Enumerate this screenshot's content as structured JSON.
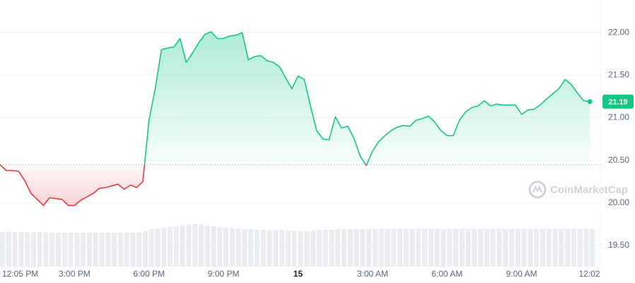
{
  "chart_data": {
    "type": "line",
    "x": [
      12,
      12.25,
      12.5,
      12.75,
      13,
      13.25,
      13.5,
      13.75,
      14,
      14.25,
      14.5,
      14.75,
      15,
      15.25,
      15.5,
      15.75,
      16,
      16.25,
      16.5,
      16.75,
      17,
      17.25,
      17.5,
      17.75,
      18,
      18.25,
      18.5,
      18.75,
      19,
      19.25,
      19.5,
      19.75,
      20,
      20.25,
      20.5,
      20.75,
      21,
      21.25,
      21.5,
      21.75,
      22,
      22.25,
      22.5,
      22.75,
      23,
      23.25,
      23.5,
      23.75,
      24,
      24.25,
      24.5,
      24.75,
      25,
      25.25,
      25.5,
      25.75,
      26,
      26.25,
      26.5,
      26.75,
      27,
      27.25,
      27.5,
      27.75,
      28,
      28.25,
      28.5,
      28.75,
      29,
      29.25,
      29.5,
      29.75,
      30,
      30.25,
      30.5,
      30.75,
      31,
      31.25,
      31.5,
      31.75,
      32,
      32.25,
      32.5,
      32.75,
      33,
      33.25,
      33.5,
      33.75,
      34,
      34.25,
      34.5,
      34.75,
      35,
      35.25,
      35.5,
      35.75
    ],
    "series": [
      {
        "color": "#16c784",
        "below_color": "#ea3943",
        "values": [
          20.45,
          20.38,
          20.38,
          20.37,
          20.26,
          20.11,
          20.04,
          19.97,
          20.06,
          20.05,
          20.04,
          19.97,
          19.97,
          20.03,
          20.07,
          20.11,
          20.17,
          20.18,
          20.2,
          20.22,
          20.16,
          20.21,
          20.18,
          20.25,
          20.97,
          21.34,
          21.8,
          21.82,
          21.83,
          21.93,
          21.65,
          21.76,
          21.88,
          21.98,
          22.01,
          21.93,
          21.93,
          21.96,
          21.97,
          22.0,
          21.68,
          21.72,
          21.73,
          21.67,
          21.65,
          21.6,
          21.47,
          21.34,
          21.49,
          21.45,
          21.14,
          20.85,
          20.75,
          20.74,
          21.01,
          20.88,
          20.9,
          20.76,
          20.55,
          20.44,
          20.61,
          20.72,
          20.79,
          20.85,
          20.89,
          20.91,
          20.9,
          20.97,
          20.99,
          21.02,
          20.95,
          20.85,
          20.79,
          20.79,
          20.97,
          21.07,
          21.12,
          21.14,
          21.2,
          21.14,
          21.16,
          21.15,
          21.15,
          21.15,
          21.04,
          21.09,
          21.1,
          21.15,
          21.22,
          21.28,
          21.34,
          21.45,
          21.39,
          21.29,
          21.2,
          21.19
        ]
      }
    ],
    "volume": [
      82,
      83,
      82,
      82,
      81,
      81,
      82,
      81,
      81,
      80,
      80,
      81,
      80,
      80,
      81,
      81,
      80,
      80,
      80,
      81,
      81,
      80,
      81,
      84,
      88,
      90,
      92,
      94,
      96,
      98,
      99,
      100,
      99,
      97,
      95,
      93,
      92,
      91,
      90,
      89,
      88,
      87,
      87,
      86,
      86,
      86,
      85,
      85,
      84,
      85,
      86,
      86,
      87,
      87,
      88,
      88,
      88,
      88,
      88,
      88,
      89,
      89,
      89,
      89,
      89,
      89,
      89,
      89,
      89,
      89,
      89,
      89,
      89,
      89,
      89,
      89,
      89,
      89,
      89,
      89,
      89,
      89,
      89,
      89,
      89,
      89,
      89,
      89,
      89,
      89,
      89,
      89,
      89,
      89,
      89,
      89
    ],
    "baseline": 20.45,
    "xlim": [
      12,
      36.2
    ],
    "xticks": [
      {
        "value": 12.083,
        "label": "12:05 PM"
      },
      {
        "value": 15,
        "label": "3:00 PM"
      },
      {
        "value": 18,
        "label": "6:00 PM"
      },
      {
        "value": 21,
        "label": "9:00 PM"
      },
      {
        "value": 24,
        "label": "15"
      },
      {
        "value": 27,
        "label": "3:00 AM"
      },
      {
        "value": 30,
        "label": "6:00 AM"
      },
      {
        "value": 33,
        "label": "9:00 AM"
      },
      {
        "value": 36.033,
        "label": "12:02 PM"
      }
    ],
    "ylim": [
      19.25,
      22.35
    ],
    "yticks": [
      {
        "value": 19.5,
        "label": "19.50"
      },
      {
        "value": 20,
        "label": "20.00"
      },
      {
        "value": 20.5,
        "label": "20.50"
      },
      {
        "value": 21,
        "label": "21.00"
      },
      {
        "value": 21.5,
        "label": "21.50"
      },
      {
        "value": 22,
        "label": "22.00"
      }
    ],
    "grid": true,
    "watermark": "CoinMarketCap"
  }
}
